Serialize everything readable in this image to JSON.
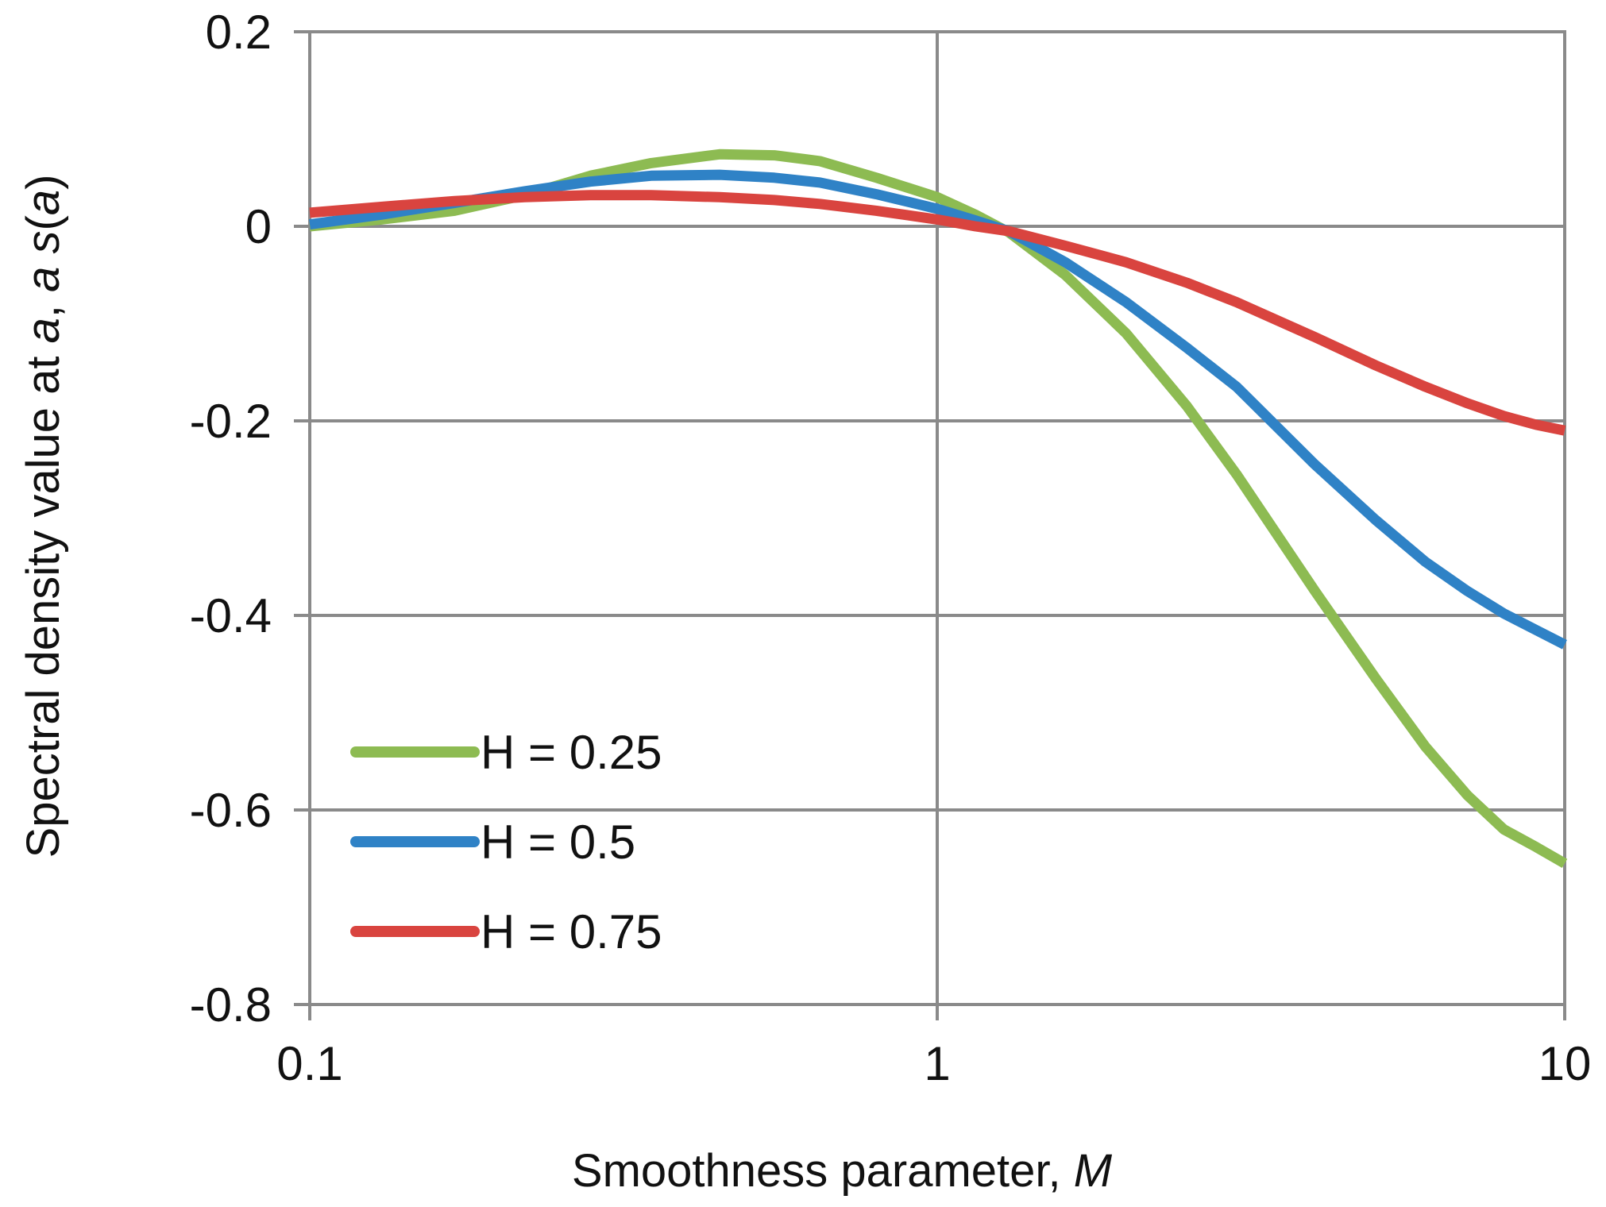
{
  "chart_data": {
    "type": "line",
    "title": "",
    "xlabel": {
      "text": "Smoothness parameter, ",
      "italic": "M"
    },
    "ylabel": {
      "prefix": "Spectral density value at ",
      "a1": "a",
      "sep": ", ",
      "a2": "a",
      "space": " ",
      "s": "s",
      "open": "(",
      "a3": "a",
      "close": ")"
    },
    "x_scale": "log",
    "xlim": [
      0.1,
      10
    ],
    "ylim": [
      -0.8,
      0.2
    ],
    "x_ticks": [
      {
        "value": 0.1,
        "label": "0.1"
      },
      {
        "value": 1,
        "label": "1"
      },
      {
        "value": 10,
        "label": "10"
      }
    ],
    "y_ticks": [
      {
        "value": 0.2,
        "label": "0.2"
      },
      {
        "value": 0,
        "label": "0"
      },
      {
        "value": -0.2,
        "label": "-0.2"
      },
      {
        "value": -0.4,
        "label": "-0.4"
      },
      {
        "value": -0.6,
        "label": "-0.6"
      },
      {
        "value": -0.8,
        "label": "-0.8"
      }
    ],
    "grid": true,
    "legend_position": "bottom-left",
    "series": [
      {
        "name": "H = 0.25",
        "color": "#8DBB52",
        "x": [
          0.1,
          0.13,
          0.17,
          0.22,
          0.28,
          0.35,
          0.45,
          0.55,
          0.65,
          0.8,
          1.0,
          1.15,
          1.3,
          1.6,
          2.0,
          2.5,
          3.0,
          4.0,
          5.0,
          6.0,
          7.0,
          8.0,
          9.0,
          10.0
        ],
        "y": [
          0.0,
          0.007,
          0.016,
          0.032,
          0.052,
          0.065,
          0.074,
          0.073,
          0.067,
          0.05,
          0.03,
          0.012,
          -0.006,
          -0.05,
          -0.11,
          -0.185,
          -0.255,
          -0.375,
          -0.465,
          -0.535,
          -0.585,
          -0.62,
          -0.638,
          -0.655
        ]
      },
      {
        "name": "H = 0.5",
        "color": "#2F82C6",
        "x": [
          0.1,
          0.13,
          0.17,
          0.22,
          0.28,
          0.35,
          0.45,
          0.55,
          0.65,
          0.8,
          1.0,
          1.15,
          1.3,
          1.6,
          2.0,
          2.5,
          3.0,
          4.0,
          5.0,
          6.0,
          7.0,
          8.0,
          9.0,
          10.0
        ],
        "y": [
          0.002,
          0.012,
          0.024,
          0.036,
          0.046,
          0.052,
          0.053,
          0.05,
          0.045,
          0.033,
          0.018,
          0.006,
          -0.005,
          -0.037,
          -0.078,
          -0.125,
          -0.165,
          -0.245,
          -0.302,
          -0.345,
          -0.375,
          -0.398,
          -0.415,
          -0.43
        ]
      },
      {
        "name": "H = 0.75",
        "color": "#D9443F",
        "x": [
          0.1,
          0.13,
          0.17,
          0.22,
          0.28,
          0.35,
          0.45,
          0.55,
          0.65,
          0.8,
          1.0,
          1.15,
          1.3,
          1.6,
          2.0,
          2.5,
          3.0,
          4.0,
          5.0,
          6.0,
          7.0,
          8.0,
          9.0,
          10.0
        ],
        "y": [
          0.014,
          0.02,
          0.026,
          0.03,
          0.032,
          0.032,
          0.03,
          0.027,
          0.023,
          0.016,
          0.007,
          0.0,
          -0.005,
          -0.02,
          -0.037,
          -0.058,
          -0.078,
          -0.114,
          -0.143,
          -0.165,
          -0.182,
          -0.195,
          -0.204,
          -0.21
        ]
      }
    ]
  }
}
